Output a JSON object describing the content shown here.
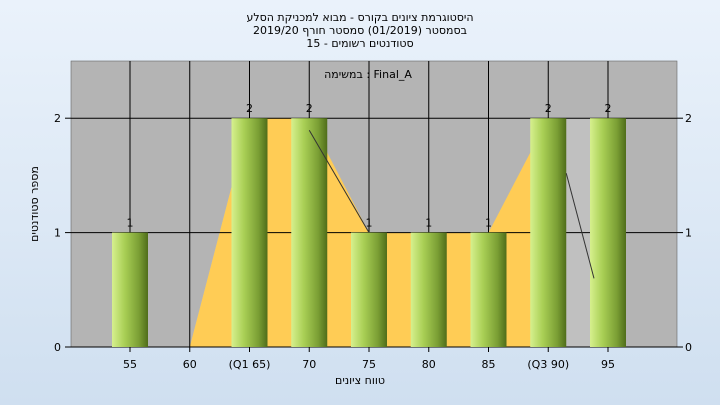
{
  "chart_data": {
    "type": "bar",
    "title_lines": [
      "היסטוגרמת ציונים בקורס - מבוא למכניקת הסלע",
      "בסמסטר  (01/2019)  סמסטר חורף 2019/20",
      "סטודנטים רשומים - 15"
    ],
    "legend_text": "במשימה : Final_A",
    "categories": [
      "55",
      "60",
      "(Q1 65)",
      "70",
      "75",
      "80",
      "85",
      "(Q3 90)",
      "95"
    ],
    "values": [
      1,
      0,
      2,
      2,
      1,
      1,
      1,
      2,
      2
    ],
    "data_labels": [
      "1",
      "",
      "2",
      "2",
      "1",
      "1",
      "1",
      "2",
      "2"
    ],
    "xlabel": "טווח ציונים",
    "ylabel": "מספר סטודנטים",
    "ylim": [
      0,
      2.5
    ],
    "yticks": [
      0,
      1,
      2
    ],
    "grid": true,
    "colors": {
      "bar_light": "#d4ef8a",
      "bar_mid": "#9cc24a",
      "bar_dark": "#587a1e",
      "plot_bg": "#b4b4b4",
      "left_area": "#c0c0c0",
      "mid_area": "#ffcc55",
      "grid": "#000000"
    }
  }
}
